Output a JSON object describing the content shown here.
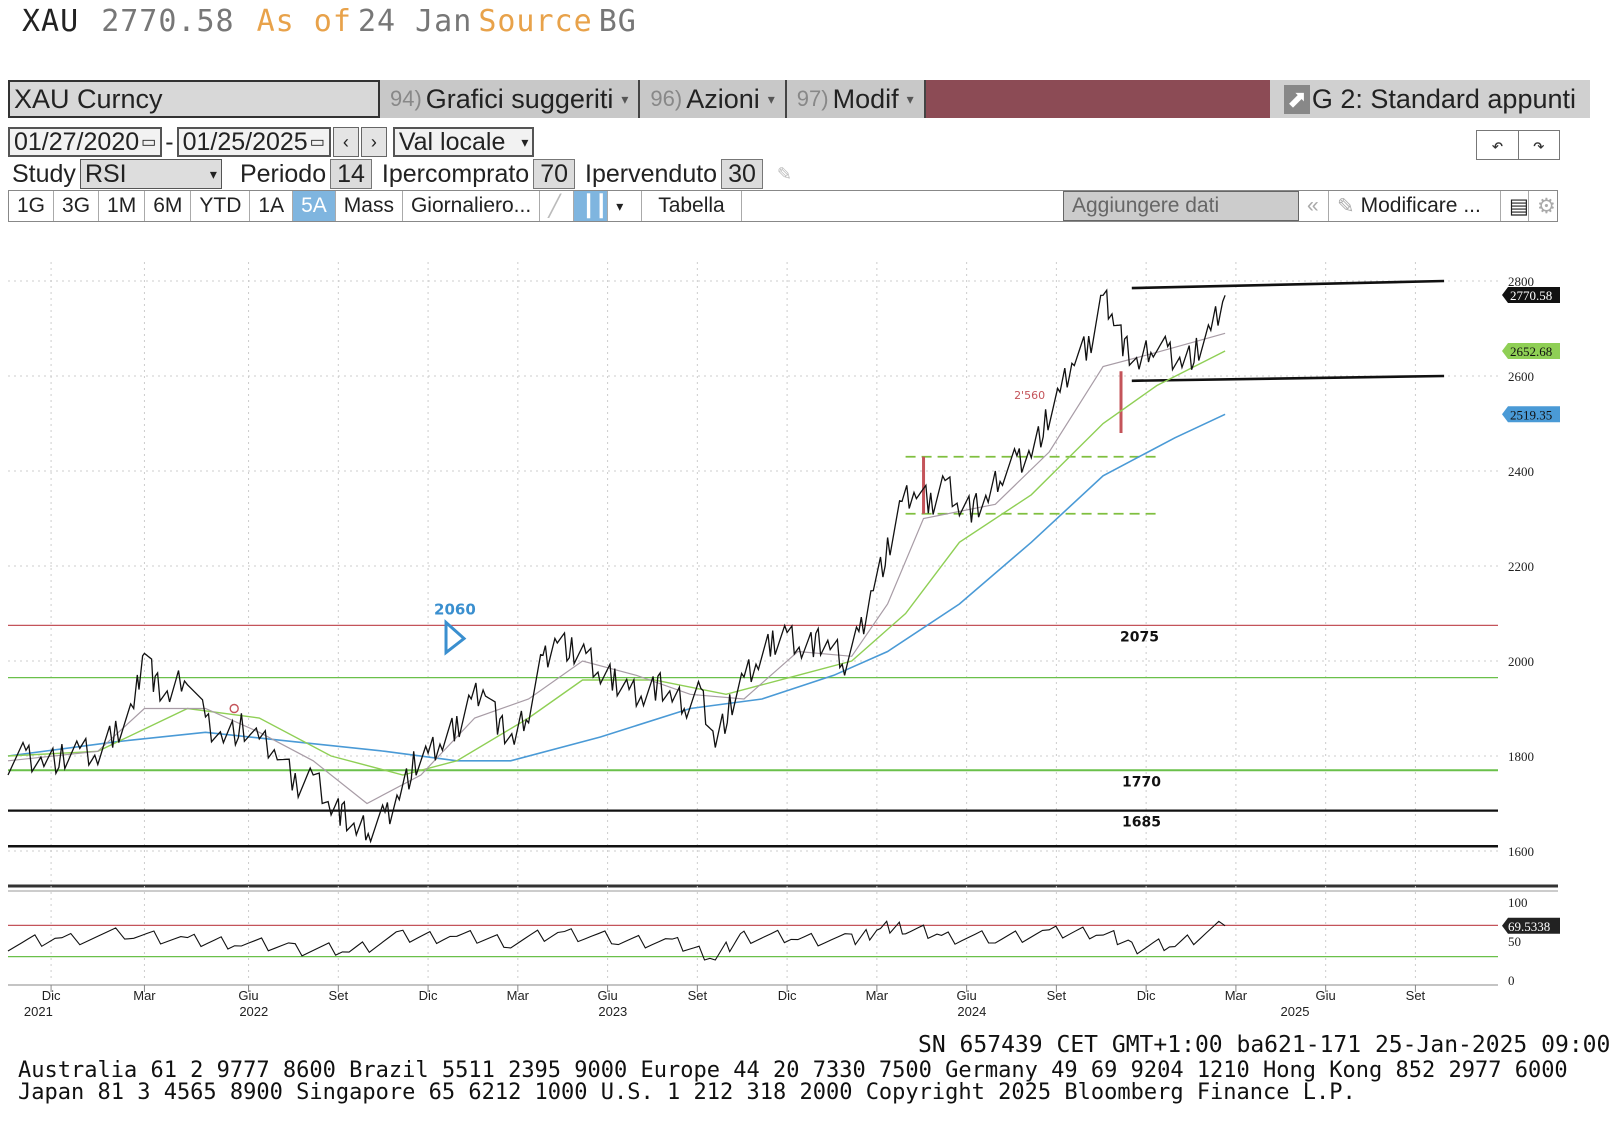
{
  "header": {
    "ticker": "XAU",
    "price": "2770.58",
    "as_of": "As of",
    "date": "24 Jan",
    "source": "Source",
    "source_name": "BG"
  },
  "toolbar": {
    "security": "XAU Curncy",
    "menus": [
      {
        "num": "94)",
        "label": "Grafici suggeriti"
      },
      {
        "num": "96)",
        "label": "Azioni"
      },
      {
        "num": "97)",
        "label": "Modif"
      }
    ],
    "template": "G 2: Standard appunti",
    "date_from": "01/27/2020",
    "date_to": "01/25/2025",
    "currency": "Val locale",
    "study_label": "Study",
    "study": "RSI",
    "period_label": "Periodo",
    "period": "14",
    "overbought_label": "Ipercomprato",
    "overbought": "70",
    "oversold_label": "Ipervenduto",
    "oversold": "30",
    "ranges": [
      "1G",
      "3G",
      "1M",
      "6M",
      "YTD",
      "1A",
      "5A",
      "Mass"
    ],
    "active_range": "5A",
    "frequency": "Giornaliero...",
    "table": "Tabella",
    "add_data": "Aggiungere dati",
    "edit": "Modificare ..."
  },
  "chart_data": {
    "type": "line",
    "price_axis": {
      "ylim": [
        1560,
        2840
      ],
      "ticks": [
        1600,
        1800,
        2000,
        2200,
        2400,
        2600,
        2800
      ]
    },
    "rsi_axis": {
      "ylim": [
        0,
        100
      ],
      "ticks": [
        0,
        50,
        100
      ]
    },
    "x_labels": [
      {
        "label": "Dic",
        "year": "2021",
        "t": 1.87
      },
      {
        "label": "Mar",
        "t": 2.13
      },
      {
        "label": "Giu",
        "year": "",
        "t": 2.42
      },
      {
        "label": "Set",
        "t": 2.67
      },
      {
        "label": "Dic",
        "t": 2.92
      },
      {
        "label": "Mar",
        "year": "",
        "t": 3.17
      },
      {
        "label": "Giu",
        "t": 3.42
      },
      {
        "label": "Set",
        "t": 3.67
      },
      {
        "label": "Dic",
        "t": 3.92
      },
      {
        "label": "Mar",
        "t": 4.17
      },
      {
        "label": "Giu",
        "t": 4.42
      },
      {
        "label": "Set",
        "t": 4.67
      },
      {
        "label": "Dic",
        "t": 4.92
      },
      {
        "label": "Mar",
        "t": 5.17
      },
      {
        "label": "Giu",
        "t": 5.42
      },
      {
        "label": "Set",
        "t": 5.67
      }
    ],
    "year_labels": [
      {
        "label": "2021",
        "t": 1.85
      },
      {
        "label": "2022",
        "t": 2.45
      },
      {
        "label": "2023",
        "t": 3.45
      },
      {
        "label": "2024",
        "t": 4.45
      },
      {
        "label": "2025",
        "t": 5.35
      }
    ],
    "price": [
      [
        1.75,
        1790
      ],
      [
        1.8,
        1800
      ],
      [
        1.85,
        1790
      ],
      [
        1.9,
        1795
      ],
      [
        1.95,
        1810
      ],
      [
        2.0,
        1800
      ],
      [
        2.05,
        1850
      ],
      [
        2.1,
        1900
      ],
      [
        2.13,
        2040
      ],
      [
        2.16,
        1950
      ],
      [
        2.2,
        1920
      ],
      [
        2.25,
        1980
      ],
      [
        2.3,
        1870
      ],
      [
        2.35,
        1840
      ],
      [
        2.4,
        1860
      ],
      [
        2.45,
        1830
      ],
      [
        2.5,
        1810
      ],
      [
        2.55,
        1740
      ],
      [
        2.6,
        1760
      ],
      [
        2.65,
        1700
      ],
      [
        2.68,
        1680
      ],
      [
        2.72,
        1640
      ],
      [
        2.76,
        1650
      ],
      [
        2.8,
        1670
      ],
      [
        2.84,
        1720
      ],
      [
        2.88,
        1780
      ],
      [
        2.92,
        1800
      ],
      [
        2.96,
        1830
      ],
      [
        3.0,
        1860
      ],
      [
        3.04,
        1920
      ],
      [
        3.08,
        1950
      ],
      [
        3.12,
        1860
      ],
      [
        3.16,
        1830
      ],
      [
        3.2,
        1900
      ],
      [
        3.24,
        2000
      ],
      [
        3.28,
        2050
      ],
      [
        3.32,
        2020
      ],
      [
        3.36,
        2010
      ],
      [
        3.4,
        1970
      ],
      [
        3.44,
        1960
      ],
      [
        3.48,
        1940
      ],
      [
        3.52,
        1930
      ],
      [
        3.56,
        1950
      ],
      [
        3.6,
        1920
      ],
      [
        3.64,
        1910
      ],
      [
        3.68,
        1930
      ],
      [
        3.72,
        1830
      ],
      [
        3.76,
        1900
      ],
      [
        3.8,
        1960
      ],
      [
        3.84,
        2000
      ],
      [
        3.88,
        2040
      ],
      [
        3.92,
        2060
      ],
      [
        3.96,
        2030
      ],
      [
        4.0,
        2040
      ],
      [
        4.04,
        2030
      ],
      [
        4.08,
        2000
      ],
      [
        4.12,
        2050
      ],
      [
        4.16,
        2160
      ],
      [
        4.2,
        2230
      ],
      [
        4.24,
        2330
      ],
      [
        4.28,
        2360
      ],
      [
        4.32,
        2330
      ],
      [
        4.36,
        2380
      ],
      [
        4.4,
        2330
      ],
      [
        4.44,
        2320
      ],
      [
        4.48,
        2340
      ],
      [
        4.52,
        2400
      ],
      [
        4.56,
        2420
      ],
      [
        4.6,
        2440
      ],
      [
        4.64,
        2500
      ],
      [
        4.68,
        2560
      ],
      [
        4.72,
        2640
      ],
      [
        4.76,
        2660
      ],
      [
        4.8,
        2770
      ],
      [
        4.83,
        2730
      ],
      [
        4.86,
        2660
      ],
      [
        4.9,
        2620
      ],
      [
        4.94,
        2670
      ],
      [
        4.98,
        2650
      ],
      [
        5.02,
        2630
      ],
      [
        5.06,
        2650
      ],
      [
        5.1,
        2690
      ],
      [
        5.14,
        2770
      ]
    ],
    "ma_short": [
      [
        1.75,
        1790
      ],
      [
        2.0,
        1810
      ],
      [
        2.13,
        1900
      ],
      [
        2.3,
        1900
      ],
      [
        2.45,
        1850
      ],
      [
        2.6,
        1790
      ],
      [
        2.75,
        1700
      ],
      [
        2.9,
        1760
      ],
      [
        3.05,
        1880
      ],
      [
        3.2,
        1920
      ],
      [
        3.35,
        2000
      ],
      [
        3.5,
        1970
      ],
      [
        3.65,
        1930
      ],
      [
        3.8,
        1920
      ],
      [
        3.95,
        2020
      ],
      [
        4.1,
        2010
      ],
      [
        4.2,
        2120
      ],
      [
        4.3,
        2300
      ],
      [
        4.5,
        2330
      ],
      [
        4.65,
        2440
      ],
      [
        4.8,
        2620
      ],
      [
        4.95,
        2650
      ],
      [
        5.14,
        2690
      ]
    ],
    "ma_medium": [
      [
        1.75,
        1800
      ],
      [
        2.0,
        1810
      ],
      [
        2.25,
        1900
      ],
      [
        2.45,
        1880
      ],
      [
        2.65,
        1800
      ],
      [
        2.85,
        1760
      ],
      [
        3.0,
        1790
      ],
      [
        3.2,
        1880
      ],
      [
        3.35,
        1960
      ],
      [
        3.55,
        1960
      ],
      [
        3.75,
        1930
      ],
      [
        3.95,
        1970
      ],
      [
        4.1,
        2000
      ],
      [
        4.25,
        2100
      ],
      [
        4.4,
        2250
      ],
      [
        4.6,
        2350
      ],
      [
        4.8,
        2500
      ],
      [
        4.95,
        2580
      ],
      [
        5.14,
        2652.68
      ]
    ],
    "ma_long": [
      [
        1.75,
        1800
      ],
      [
        2.05,
        1830
      ],
      [
        2.3,
        1850
      ],
      [
        2.55,
        1830
      ],
      [
        2.8,
        1810
      ],
      [
        3.0,
        1790
      ],
      [
        3.15,
        1790
      ],
      [
        3.4,
        1840
      ],
      [
        3.65,
        1900
      ],
      [
        3.85,
        1920
      ],
      [
        4.05,
        1970
      ],
      [
        4.2,
        2020
      ],
      [
        4.4,
        2120
      ],
      [
        4.6,
        2250
      ],
      [
        4.8,
        2390
      ],
      [
        5.0,
        2470
      ],
      [
        5.14,
        2519.35
      ]
    ],
    "levels": [
      {
        "value": 2075,
        "label": "2075"
      },
      {
        "value": 1770,
        "label": "1770"
      },
      {
        "value": 1685,
        "label": "1685"
      }
    ],
    "thin_levels": [
      1965
    ],
    "channel_upper": [
      [
        4.88,
        2785
      ],
      [
        5.75,
        2800
      ]
    ],
    "channel_lower": [
      [
        4.88,
        2590
      ],
      [
        5.75,
        2600
      ]
    ],
    "box_dashed": [
      {
        "y": 2430,
        "t0": 4.25,
        "t1": 4.95
      },
      {
        "y": 2310,
        "t0": 4.25,
        "t1": 4.95
      }
    ],
    "annotations": [
      {
        "label": "2060",
        "value": 2060,
        "t": 2.97
      },
      {
        "label": "2'560",
        "value": 2560,
        "t": 4.58
      }
    ],
    "last_price": {
      "value": 2770.58,
      "label": "2770.58"
    },
    "ma_medium_last": {
      "label": "2652.68"
    },
    "ma_long_last": {
      "label": "2519.35"
    },
    "rsi": [
      [
        1.75,
        46
      ],
      [
        1.9,
        52
      ],
      [
        2.1,
        60
      ],
      [
        2.25,
        50
      ],
      [
        2.4,
        48
      ],
      [
        2.55,
        40
      ],
      [
        2.7,
        38
      ],
      [
        2.85,
        55
      ],
      [
        3.0,
        56
      ],
      [
        3.15,
        50
      ],
      [
        3.3,
        60
      ],
      [
        3.45,
        52
      ],
      [
        3.6,
        48
      ],
      [
        3.72,
        30
      ],
      [
        3.8,
        56
      ],
      [
        3.95,
        54
      ],
      [
        4.1,
        50
      ],
      [
        4.18,
        66
      ],
      [
        4.25,
        68
      ],
      [
        4.35,
        55
      ],
      [
        4.5,
        54
      ],
      [
        4.65,
        60
      ],
      [
        4.8,
        62
      ],
      [
        4.88,
        42
      ],
      [
        5.0,
        45
      ],
      [
        5.14,
        69.5338
      ]
    ],
    "rsi_last": {
      "label": "69.5338"
    },
    "rsi_levels": [
      70,
      30
    ]
  },
  "footer": {
    "session": "SN 657439 CET   GMT+1:00 ba621-171 25-Jan-2025 09:00",
    "line1": "Australia 61 2 9777 8600 Brazil 5511 2395 9000 Europe 44 20 7330 7500 Germany 49 69 9204 1210 Hong Kong 852 2977 6000",
    "line2": "Japan 81 3 4565 8900      Singapore 65 6212 1000      U.S. 1 212 318 2000         Copyright 2025 Bloomberg Finance L.P."
  },
  "colors": {
    "price": "#111111",
    "ma_short": "#a89ca6",
    "ma_medium": "#8fcf55",
    "ma_long": "#4a9ad6",
    "red_level": "#c4545a",
    "green_level": "#6ac04a",
    "dashed": "#7fbf3f",
    "rsi": "#111111"
  }
}
